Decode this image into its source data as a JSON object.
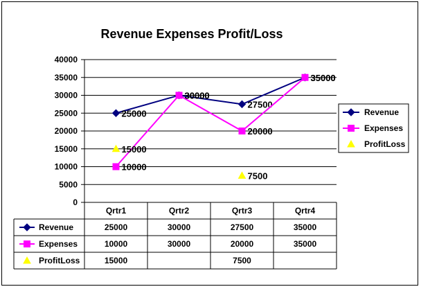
{
  "chart_data": {
    "type": "line",
    "title": "Revenue Expenses Profit/Loss",
    "xlabel": "",
    "ylabel": "",
    "categories": [
      "Qrtr1",
      "Qrtr2",
      "Qrtr3",
      "Qrtr4"
    ],
    "ylim": [
      0,
      40000
    ],
    "yticks": [
      "0",
      "5000",
      "10000",
      "15000",
      "20000",
      "25000",
      "30000",
      "35000",
      "40000"
    ],
    "grid": true,
    "legend_position": "right",
    "series": [
      {
        "name": "Revenue",
        "values": [
          25000,
          30000,
          27500,
          35000
        ],
        "labels": [
          "25000",
          "30000",
          "27500",
          "35000"
        ],
        "color": "#000080",
        "marker": "diamond",
        "line": true
      },
      {
        "name": "Expenses",
        "values": [
          10000,
          30000,
          20000,
          35000
        ],
        "labels": [
          "10000",
          "30000",
          "20000",
          "35000"
        ],
        "color": "#FF00FF",
        "marker": "square",
        "line": true
      },
      {
        "name": "ProfitLoss",
        "values": [
          15000,
          null,
          7500,
          null
        ],
        "labels": [
          "15000",
          "",
          "7500",
          ""
        ],
        "color": "#FFFF00",
        "marker": "triangle",
        "line": false
      }
    ]
  }
}
